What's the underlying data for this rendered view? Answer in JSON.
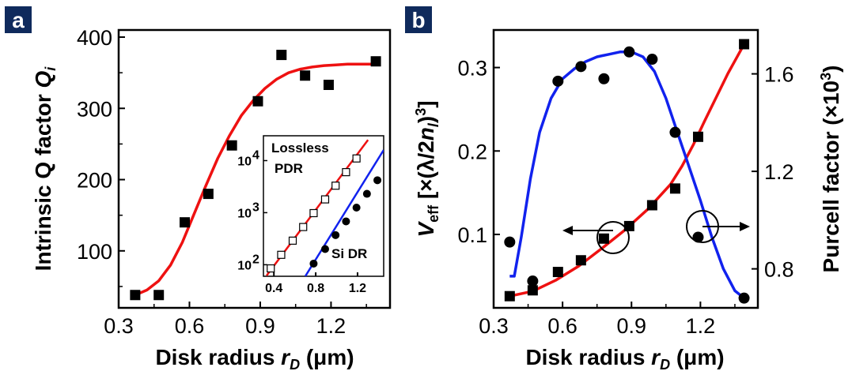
{
  "panels": [
    {
      "label": "a",
      "color": "#0f2a5c"
    },
    {
      "label": "b",
      "color": "#0f2a5c"
    }
  ],
  "chart_data": [
    {
      "type": "scatter",
      "panel": "a",
      "xlabel": "Disk radius r_D (μm)",
      "ylabel": "Intrinsic Q factor Q_i",
      "xlim": [
        0.3,
        1.45
      ],
      "ylim": [
        20,
        410
      ],
      "xticks": [
        "0.3",
        "0.6",
        "0.9",
        "1.2"
      ],
      "yticks": [
        "100",
        "200",
        "300",
        "400"
      ],
      "series": [
        {
          "marker": "filled-square",
          "color": "#000000",
          "x": [
            0.37,
            0.47,
            0.58,
            0.68,
            0.78,
            0.89,
            0.99,
            1.09,
            1.19,
            1.39
          ],
          "y": [
            38,
            38,
            140,
            180,
            248,
            310,
            375,
            346,
            333,
            366
          ]
        },
        {
          "marker": "line",
          "color": "#ee1111",
          "x": [
            0.37,
            0.42,
            0.47,
            0.52,
            0.57,
            0.62,
            0.67,
            0.72,
            0.77,
            0.82,
            0.87,
            0.92,
            0.97,
            1.02,
            1.07,
            1.12,
            1.17,
            1.22,
            1.27,
            1.32,
            1.38
          ],
          "y": [
            38,
            45,
            58,
            80,
            112,
            152,
            192,
            230,
            262,
            290,
            311,
            328,
            341,
            350,
            355,
            358,
            360,
            361,
            362,
            362,
            362
          ]
        }
      ],
      "inset": {
        "type": "scatter",
        "yscale": "log",
        "xlim": [
          0.3,
          1.45
        ],
        "ylim": [
          60,
          30000
        ],
        "xticks": [
          "0.4",
          "0.8",
          "1.2"
        ],
        "yticks": [
          "10",
          "10",
          "10"
        ],
        "ytick_exponents": [
          "2",
          "3",
          "4"
        ],
        "annotations": [
          "Lossless",
          "PDR",
          "Si DR"
        ],
        "series": [
          {
            "name": "Lossless PDR",
            "marker": "open-square",
            "color": "#000000",
            "x": [
              0.37,
              0.47,
              0.58,
              0.68,
              0.78,
              0.89,
              0.99,
              1.09,
              1.19
            ],
            "y": [
              85,
              155,
              290,
              530,
              980,
              1800,
              3300,
              6000,
              11000
            ]
          },
          {
            "name": "Lossless PDR fit",
            "marker": "line",
            "color": "#ee1111",
            "x": [
              0.33,
              1.3
            ],
            "y": [
              62,
              25000
            ]
          },
          {
            "name": "Si DR",
            "marker": "filled-circle",
            "color": "#000000",
            "x": [
              0.78,
              0.89,
              0.99,
              1.09,
              1.19,
              1.29,
              1.39
            ],
            "y": [
              105,
              200,
              370,
              680,
              1250,
              2300,
              4200
            ]
          },
          {
            "name": "Si DR fit",
            "marker": "line",
            "color": "#1122ee",
            "x": [
              0.7,
              1.45
            ],
            "y": [
              60,
              16000
            ]
          }
        ]
      }
    },
    {
      "type": "scatter",
      "panel": "b",
      "xlabel": "Disk radius r_D (μm)",
      "ylabel_left": "V_eff [×(λ/2n_l)^3]",
      "ylabel_right": "Purcell factor (×10^3)",
      "xlim": [
        0.3,
        1.45
      ],
      "ylim_left": [
        0.012,
        0.345
      ],
      "ylim_right": [
        0.64,
        1.78
      ],
      "xticks": [
        "0.3",
        "0.6",
        "0.9",
        "1.2"
      ],
      "yticks_left": [
        "0.1",
        "0.2",
        "0.3"
      ],
      "yticks_right": [
        "0.8",
        "1.2",
        "1.6"
      ],
      "series": [
        {
          "name": "V_eff",
          "axis": "left",
          "marker": "filled-square",
          "color": "#000000",
          "x": [
            0.37,
            0.47,
            0.58,
            0.68,
            0.78,
            0.89,
            0.99,
            1.09,
            1.19,
            1.39
          ],
          "y": [
            0.026,
            0.033,
            0.055,
            0.069,
            0.095,
            0.11,
            0.135,
            0.155,
            0.217,
            0.328
          ]
        },
        {
          "name": "V_eff fit",
          "axis": "left",
          "marker": "line",
          "color": "#ee1111",
          "x": [
            0.37,
            0.47,
            0.57,
            0.67,
            0.77,
            0.87,
            0.97,
            1.07,
            1.12,
            1.17,
            1.22,
            1.27,
            1.32,
            1.36,
            1.39
          ],
          "y": [
            0.026,
            0.032,
            0.045,
            0.062,
            0.083,
            0.105,
            0.13,
            0.16,
            0.182,
            0.208,
            0.237,
            0.265,
            0.293,
            0.313,
            0.328
          ]
        },
        {
          "name": "Purcell factor",
          "axis": "right",
          "marker": "filled-circle",
          "color": "#000000",
          "x": [
            0.37,
            0.47,
            0.58,
            0.68,
            0.78,
            0.89,
            0.99,
            1.09,
            1.19,
            1.39
          ],
          "y": [
            0.91,
            0.75,
            1.57,
            1.63,
            1.58,
            1.69,
            1.66,
            1.36,
            0.93,
            0.68
          ]
        },
        {
          "name": "Purcell factor fit",
          "axis": "right",
          "marker": "line",
          "color": "#1122ee",
          "x": [
            0.37,
            0.39,
            0.42,
            0.46,
            0.5,
            0.55,
            0.6,
            0.65,
            0.7,
            0.75,
            0.8,
            0.85,
            0.9,
            0.95,
            1.0,
            1.05,
            1.1,
            1.15,
            1.2,
            1.25,
            1.3,
            1.35,
            1.39
          ],
          "y": [
            0.77,
            0.77,
            0.93,
            1.17,
            1.36,
            1.5,
            1.58,
            1.62,
            1.65,
            1.67,
            1.68,
            1.69,
            1.69,
            1.67,
            1.61,
            1.5,
            1.36,
            1.22,
            1.08,
            0.93,
            0.8,
            0.71,
            0.68
          ]
        }
      ]
    }
  ]
}
